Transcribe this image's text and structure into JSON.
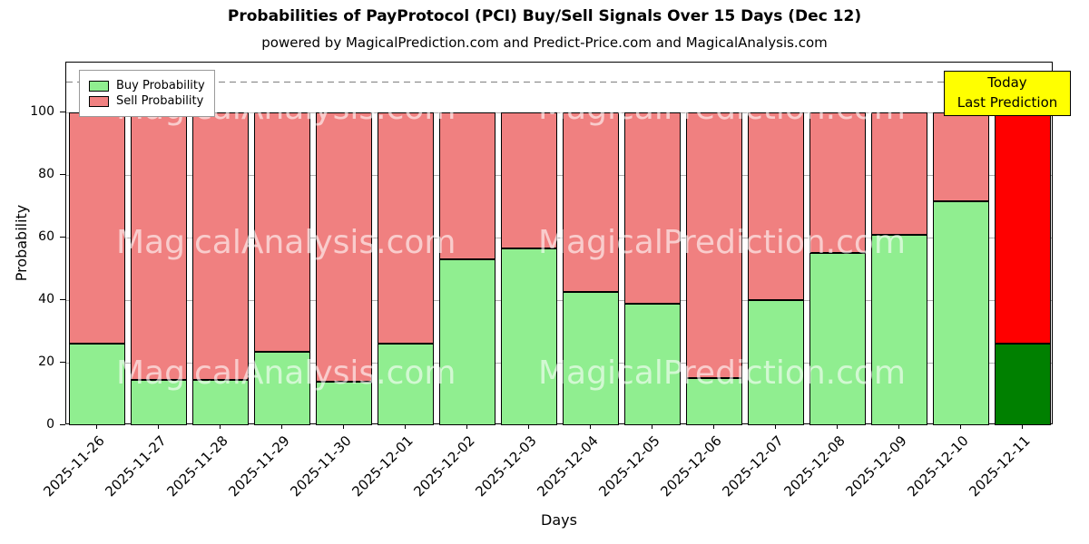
{
  "chart_data": {
    "type": "bar",
    "stacked": true,
    "title": "Probabilities of PayProtocol (PCI) Buy/Sell Signals Over 15 Days (Dec 12)",
    "subtitle": "powered by MagicalPrediction.com and Predict-Price.com and MagicalAnalysis.com",
    "xlabel": "Days",
    "ylabel": "Probability",
    "ylim": [
      0,
      116
    ],
    "yticks": [
      0,
      20,
      40,
      60,
      80,
      100
    ],
    "grid": true,
    "dashed_line_y": 110,
    "legend_position": "top-left",
    "categories": [
      "2025-11-26",
      "2025-11-27",
      "2025-11-28",
      "2025-11-29",
      "2025-11-30",
      "2025-12-01",
      "2025-12-02",
      "2025-12-03",
      "2025-12-04",
      "2025-12-05",
      "2025-12-06",
      "2025-12-07",
      "2025-12-08",
      "2025-12-09",
      "2025-12-10",
      "2025-12-11"
    ],
    "series": [
      {
        "name": "Buy Probability",
        "color": "#90EE90",
        "values": [
          26,
          14.5,
          14.5,
          23.5,
          14,
          26,
          53,
          56.5,
          42.5,
          39,
          15,
          40,
          55,
          61,
          71.5,
          26
        ]
      },
      {
        "name": "Sell Probability",
        "color": "#F08080",
        "values": [
          74,
          85.5,
          85.5,
          76.5,
          86,
          74,
          47,
          43.5,
          57.5,
          61,
          85,
          60,
          45,
          39,
          28.5,
          74
        ]
      }
    ],
    "last_bar_colors": {
      "buy": "#008000",
      "sell": "#FF0000"
    },
    "bar_edge_color": "#000000",
    "annotation": {
      "line1": "Today",
      "line2": "Last Prediction",
      "bg_color": "#FFFF00"
    },
    "watermarks": [
      "MagicalAnalysis.com",
      "MagicalPrediction.com"
    ]
  }
}
